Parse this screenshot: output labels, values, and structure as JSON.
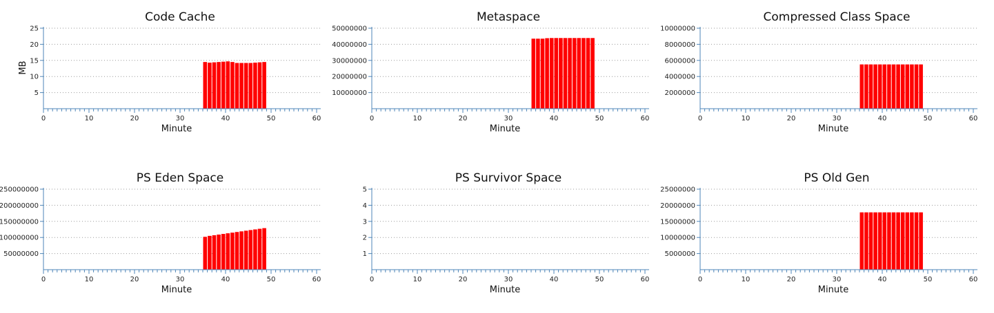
{
  "chart_data": [
    {
      "type": "bar",
      "title": "Code Cache",
      "xlabel": "Minute",
      "ylabel": "MB",
      "xlim": [
        0,
        60
      ],
      "ylim": [
        0,
        25
      ],
      "x_ticks": [
        0,
        10,
        20,
        30,
        40,
        50,
        60
      ],
      "y_ticks": [
        "5",
        "10",
        "15",
        "20",
        "25"
      ],
      "y_tick_values": [
        5,
        10,
        15,
        20,
        25
      ],
      "grid": true,
      "bar_color": "#ff0000",
      "axis_color": "#4e86b8",
      "x": [
        35,
        36,
        37,
        38,
        39,
        40,
        41,
        42,
        43,
        44,
        45,
        46,
        47,
        48
      ],
      "values": [
        14.5,
        14.3,
        14.4,
        14.5,
        14.6,
        14.7,
        14.5,
        14.2,
        14.2,
        14.2,
        14.2,
        14.3,
        14.4,
        14.5
      ]
    },
    {
      "type": "bar",
      "title": "Metaspace",
      "xlabel": "Minute",
      "ylabel": "",
      "xlim": [
        0,
        60
      ],
      "ylim": [
        0,
        50000000
      ],
      "x_ticks": [
        0,
        10,
        20,
        30,
        40,
        50,
        60
      ],
      "y_ticks": [
        "10000000",
        "20000000",
        "30000000",
        "40000000",
        "50000000"
      ],
      "y_tick_values": [
        10000000,
        20000000,
        30000000,
        40000000,
        50000000
      ],
      "grid": true,
      "bar_color": "#ff0000",
      "axis_color": "#4e86b8",
      "x": [
        35,
        36,
        37,
        38,
        39,
        40,
        41,
        42,
        43,
        44,
        45,
        46,
        47,
        48
      ],
      "values": [
        43500000,
        43500000,
        43500000,
        43800000,
        43900000,
        43900000,
        43900000,
        43900000,
        43900000,
        43900000,
        43900000,
        43900000,
        43900000,
        43900000
      ]
    },
    {
      "type": "bar",
      "title": "Compressed Class Space",
      "xlabel": "Minute",
      "ylabel": "",
      "xlim": [
        0,
        60
      ],
      "ylim": [
        0,
        10000000
      ],
      "x_ticks": [
        0,
        10,
        20,
        30,
        40,
        50,
        60
      ],
      "y_ticks": [
        "2000000",
        "4000000",
        "6000000",
        "8000000",
        "10000000"
      ],
      "y_tick_values": [
        2000000,
        4000000,
        6000000,
        8000000,
        10000000
      ],
      "grid": true,
      "bar_color": "#ff0000",
      "axis_color": "#4e86b8",
      "x": [
        35,
        36,
        37,
        38,
        39,
        40,
        41,
        42,
        43,
        44,
        45,
        46,
        47,
        48
      ],
      "values": [
        5500000,
        5500000,
        5500000,
        5500000,
        5500000,
        5500000,
        5500000,
        5500000,
        5500000,
        5500000,
        5500000,
        5500000,
        5500000,
        5500000
      ]
    },
    {
      "type": "bar",
      "title": "PS Eden Space",
      "xlabel": "Minute",
      "ylabel": "",
      "xlim": [
        0,
        60
      ],
      "ylim": [
        0,
        250000000
      ],
      "x_ticks": [
        0,
        10,
        20,
        30,
        40,
        50,
        60
      ],
      "y_ticks": [
        "50000000",
        "100000000",
        "150000000",
        "200000000",
        "250000000"
      ],
      "y_tick_values": [
        50000000,
        100000000,
        150000000,
        200000000,
        250000000
      ],
      "grid": true,
      "bar_color": "#ff0000",
      "axis_color": "#4e86b8",
      "x": [
        35,
        36,
        37,
        38,
        39,
        40,
        41,
        42,
        43,
        44,
        45,
        46,
        47,
        48
      ],
      "values": [
        102000000,
        105000000,
        107000000,
        109000000,
        111000000,
        113000000,
        115000000,
        117000000,
        119000000,
        121000000,
        123000000,
        125000000,
        127000000,
        129000000
      ]
    },
    {
      "type": "bar",
      "title": "PS Survivor Space",
      "xlabel": "Minute",
      "ylabel": "",
      "xlim": [
        0,
        60
      ],
      "ylim": [
        0,
        5
      ],
      "x_ticks": [
        0,
        10,
        20,
        30,
        40,
        50,
        60
      ],
      "y_ticks": [
        "1",
        "2",
        "3",
        "4",
        "5"
      ],
      "y_tick_values": [
        1,
        2,
        3,
        4,
        5
      ],
      "grid": true,
      "bar_color": "#ff0000",
      "axis_color": "#4e86b8",
      "x": [],
      "values": []
    },
    {
      "type": "bar",
      "title": "PS Old Gen",
      "xlabel": "Minute",
      "ylabel": "",
      "xlim": [
        0,
        60
      ],
      "ylim": [
        0,
        25000000
      ],
      "x_ticks": [
        0,
        10,
        20,
        30,
        40,
        50,
        60
      ],
      "y_ticks": [
        "5000000",
        "10000000",
        "15000000",
        "20000000",
        "25000000"
      ],
      "y_tick_values": [
        5000000,
        10000000,
        15000000,
        20000000,
        25000000
      ],
      "grid": true,
      "bar_color": "#ff0000",
      "axis_color": "#4e86b8",
      "x": [
        35,
        36,
        37,
        38,
        39,
        40,
        41,
        42,
        43,
        44,
        45,
        46,
        47,
        48
      ],
      "values": [
        17800000,
        17800000,
        17800000,
        17800000,
        17800000,
        17800000,
        17800000,
        17800000,
        17800000,
        17800000,
        17800000,
        17800000,
        17800000,
        17800000
      ]
    }
  ]
}
